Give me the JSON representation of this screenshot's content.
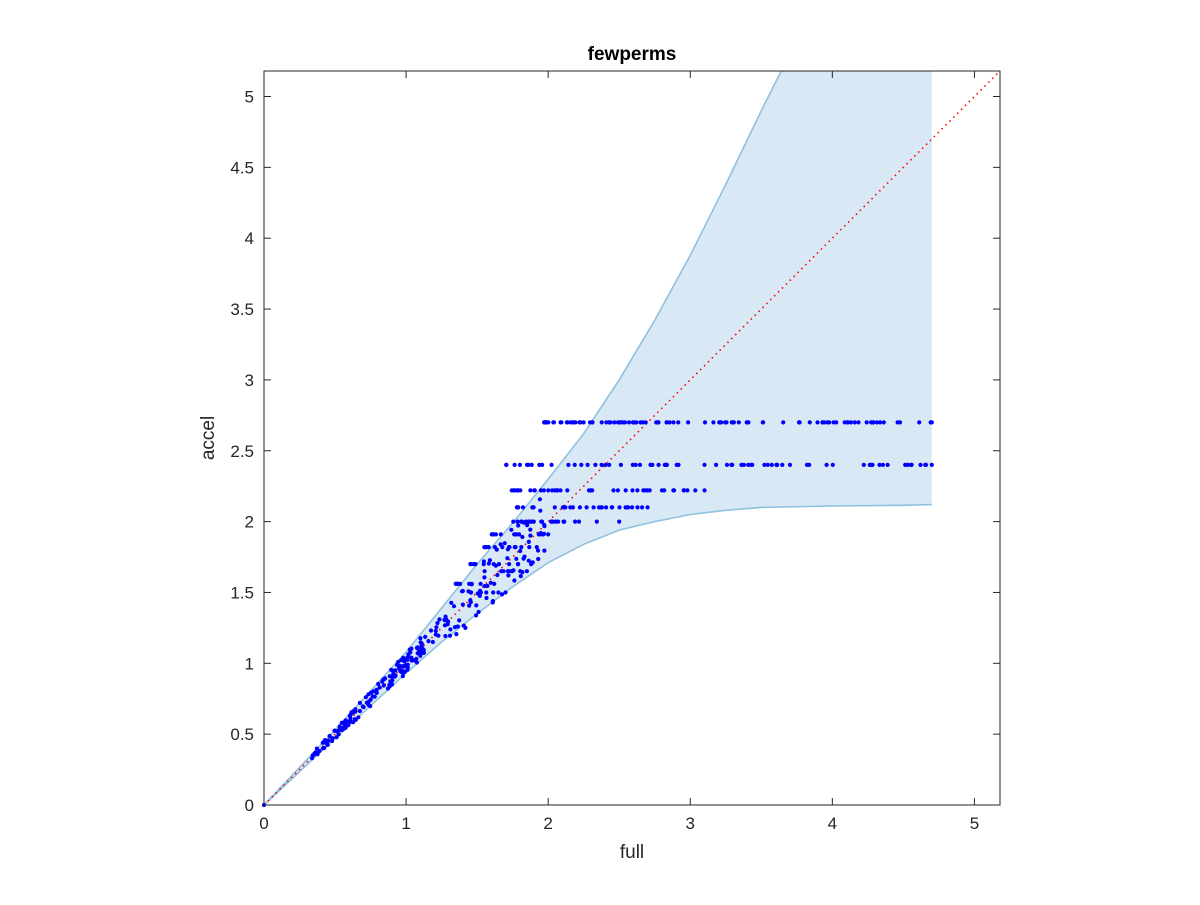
{
  "chart_data": {
    "type": "scatter",
    "title": "fewperms",
    "xlabel": "full",
    "ylabel": "accel",
    "xlim": [
      0,
      5.18
    ],
    "ylim": [
      0,
      5.18
    ],
    "x_ticks": [
      "0",
      "1",
      "2",
      "3",
      "4",
      "5"
    ],
    "y_ticks": [
      "0",
      "0.5",
      "1",
      "1.5",
      "2",
      "2.5",
      "3",
      "3.5",
      "4",
      "4.5",
      "5"
    ],
    "x_tick_values": [
      0,
      1,
      2,
      3,
      4,
      5
    ],
    "y_tick_values": [
      0,
      0.5,
      1,
      1.5,
      2,
      2.5,
      3,
      3.5,
      4,
      4.5,
      5
    ],
    "grid": false,
    "box": true,
    "colors": {
      "points": "#0000ff",
      "band_fill": "#d8e8f4",
      "band_edge": "#8ec1df",
      "reference_line": "#ff0000",
      "axes": "#262626"
    },
    "band": {
      "upper": {
        "x": [
          0,
          0.5,
          1,
          1.5,
          1.75,
          2,
          2.25,
          2.5,
          2.75,
          3,
          3.25,
          3.5,
          3.64
        ],
        "y": [
          0,
          0.53,
          1.08,
          1.7,
          1.99,
          2.3,
          2.62,
          3.0,
          3.42,
          3.88,
          4.38,
          4.9,
          5.18
        ]
      },
      "lower": {
        "x": [
          0,
          0.5,
          1,
          1.25,
          1.5,
          1.75,
          2,
          2.25,
          2.5,
          2.75,
          3,
          3.25,
          3.5,
          4,
          4.5,
          4.7
        ],
        "y": [
          0,
          0.47,
          0.93,
          1.15,
          1.35,
          1.54,
          1.71,
          1.84,
          1.94,
          2.0,
          2.05,
          2.08,
          2.1,
          2.11,
          2.115,
          2.12
        ]
      },
      "x_end": 4.7
    },
    "reference_line": {
      "x": [
        0,
        5.18
      ],
      "y": [
        0,
        5.18
      ],
      "style": "dotted"
    },
    "series": [
      {
        "marker": "dot",
        "diagonal_cluster": {
          "x_range": [
            0.33,
            1.3
          ],
          "ratio_range": [
            0.93,
            1.07
          ],
          "count": 170
        },
        "scatter_cluster": {
          "x_range": [
            1.3,
            2.0
          ],
          "ratio_range": [
            0.88,
            1.12
          ],
          "count": 70
        },
        "levels": [
          {
            "y": 2.7,
            "x_min": 1.97,
            "x_max": 4.7,
            "count": 95
          },
          {
            "y": 2.4,
            "x_min": 1.7,
            "x_max": 4.7,
            "count": 65
          },
          {
            "y": 2.22,
            "x_min": 1.72,
            "x_max": 3.1,
            "count": 38
          },
          {
            "y": 2.1,
            "x_min": 1.78,
            "x_max": 2.7,
            "count": 30
          },
          {
            "y": 2.0,
            "x_min": 1.75,
            "x_max": 2.5,
            "count": 24
          },
          {
            "y": 1.91,
            "x_min": 1.6,
            "x_max": 2.0,
            "count": 14
          },
          {
            "y": 1.82,
            "x_min": 1.55,
            "x_max": 1.92,
            "count": 12
          },
          {
            "y": 1.7,
            "x_min": 1.45,
            "x_max": 1.88,
            "count": 10
          },
          {
            "y": 1.65,
            "x_min": 1.55,
            "x_max": 1.85,
            "count": 8
          },
          {
            "y": 1.56,
            "x_min": 1.35,
            "x_max": 1.62,
            "count": 9
          },
          {
            "y": 1.5,
            "x_min": 1.45,
            "x_max": 1.7,
            "count": 6
          }
        ]
      }
    ]
  }
}
